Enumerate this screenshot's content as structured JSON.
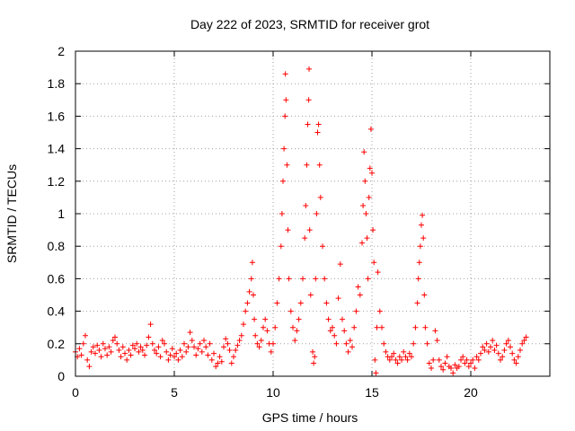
{
  "chart_data": {
    "type": "scatter",
    "title": "Day 222 of 2023, SRMTID for receiver grot",
    "xlabel": "GPS time / hours",
    "ylabel": "SRMTID / TECUs",
    "xlim": [
      0,
      24
    ],
    "ylim": [
      0,
      2
    ],
    "xticks": [
      0,
      5,
      10,
      15,
      20
    ],
    "yticks": [
      0,
      0.2,
      0.4,
      0.6,
      0.8,
      1,
      1.2,
      1.4,
      1.6,
      1.8,
      2
    ],
    "xtick_labels": [
      "0",
      "5",
      "10",
      "15",
      "20"
    ],
    "ytick_labels": [
      "0",
      "0.2",
      "0.4",
      "0.6",
      "0.8",
      "1",
      "1.2",
      "1.4",
      "1.6",
      "1.8",
      "2"
    ],
    "grid": true,
    "marker": "+",
    "color": "#ff0000",
    "series": [
      {
        "name": "SRMTID",
        "points": [
          [
            0.0,
            0.15
          ],
          [
            0.1,
            0.12
          ],
          [
            0.2,
            0.17
          ],
          [
            0.3,
            0.13
          ],
          [
            0.4,
            0.2
          ],
          [
            0.5,
            0.25
          ],
          [
            0.6,
            0.1
          ],
          [
            0.7,
            0.06
          ],
          [
            0.8,
            0.15
          ],
          [
            0.9,
            0.18
          ],
          [
            1.0,
            0.14
          ],
          [
            1.1,
            0.19
          ],
          [
            1.2,
            0.16
          ],
          [
            1.3,
            0.12
          ],
          [
            1.4,
            0.2
          ],
          [
            1.5,
            0.17
          ],
          [
            1.6,
            0.13
          ],
          [
            1.7,
            0.18
          ],
          [
            1.8,
            0.15
          ],
          [
            1.9,
            0.22
          ],
          [
            2.0,
            0.24
          ],
          [
            2.1,
            0.2
          ],
          [
            2.2,
            0.16
          ],
          [
            2.3,
            0.12
          ],
          [
            2.4,
            0.18
          ],
          [
            2.5,
            0.14
          ],
          [
            2.6,
            0.1
          ],
          [
            2.7,
            0.16
          ],
          [
            2.8,
            0.13
          ],
          [
            2.9,
            0.19
          ],
          [
            3.0,
            0.17
          ],
          [
            3.1,
            0.2
          ],
          [
            3.2,
            0.15
          ],
          [
            3.3,
            0.18
          ],
          [
            3.4,
            0.16
          ],
          [
            3.5,
            0.13
          ],
          [
            3.6,
            0.19
          ],
          [
            3.7,
            0.24
          ],
          [
            3.8,
            0.32
          ],
          [
            3.9,
            0.2
          ],
          [
            4.0,
            0.16
          ],
          [
            4.1,
            0.14
          ],
          [
            4.2,
            0.18
          ],
          [
            4.3,
            0.12
          ],
          [
            4.4,
            0.22
          ],
          [
            4.5,
            0.2
          ],
          [
            4.6,
            0.15
          ],
          [
            4.7,
            0.1
          ],
          [
            4.8,
            0.13
          ],
          [
            4.9,
            0.17
          ],
          [
            5.0,
            0.12
          ],
          [
            5.1,
            0.14
          ],
          [
            5.2,
            0.1
          ],
          [
            5.3,
            0.16
          ],
          [
            5.4,
            0.12
          ],
          [
            5.5,
            0.2
          ],
          [
            5.6,
            0.15
          ],
          [
            5.7,
            0.18
          ],
          [
            5.8,
            0.27
          ],
          [
            5.9,
            0.22
          ],
          [
            6.0,
            0.18
          ],
          [
            6.1,
            0.13
          ],
          [
            6.2,
            0.17
          ],
          [
            6.3,
            0.2
          ],
          [
            6.4,
            0.15
          ],
          [
            6.5,
            0.22
          ],
          [
            6.6,
            0.18
          ],
          [
            6.7,
            0.13
          ],
          [
            6.8,
            0.2
          ],
          [
            6.9,
            0.1
          ],
          [
            7.0,
            0.14
          ],
          [
            7.1,
            0.06
          ],
          [
            7.2,
            0.08
          ],
          [
            7.3,
            0.12
          ],
          [
            7.4,
            0.09
          ],
          [
            7.5,
            0.18
          ],
          [
            7.6,
            0.23
          ],
          [
            7.7,
            0.2
          ],
          [
            7.8,
            0.16
          ],
          [
            7.9,
            0.08
          ],
          [
            8.0,
            0.12
          ],
          [
            8.1,
            0.16
          ],
          [
            8.2,
            0.19
          ],
          [
            8.3,
            0.22
          ],
          [
            8.4,
            0.25
          ],
          [
            8.5,
            0.32
          ],
          [
            8.6,
            0.4
          ],
          [
            8.7,
            0.45
          ],
          [
            8.8,
            0.52
          ],
          [
            8.9,
            0.6
          ],
          [
            8.95,
            0.7
          ],
          [
            9.0,
            0.5
          ],
          [
            9.05,
            0.35
          ],
          [
            9.1,
            0.25
          ],
          [
            9.2,
            0.2
          ],
          [
            9.3,
            0.18
          ],
          [
            9.4,
            0.22
          ],
          [
            9.5,
            0.3
          ],
          [
            9.6,
            0.35
          ],
          [
            9.7,
            0.28
          ],
          [
            9.8,
            0.2
          ],
          [
            9.9,
            0.15
          ],
          [
            10.0,
            0.2
          ],
          [
            10.1,
            0.3
          ],
          [
            10.2,
            0.45
          ],
          [
            10.3,
            0.6
          ],
          [
            10.4,
            0.8
          ],
          [
            10.45,
            1.0
          ],
          [
            10.5,
            1.2
          ],
          [
            10.55,
            1.4
          ],
          [
            10.6,
            1.6
          ],
          [
            10.62,
            1.86
          ],
          [
            10.65,
            1.7
          ],
          [
            10.7,
            1.3
          ],
          [
            10.75,
            0.9
          ],
          [
            10.8,
            0.6
          ],
          [
            10.9,
            0.4
          ],
          [
            11.0,
            0.3
          ],
          [
            11.1,
            0.22
          ],
          [
            11.2,
            0.28
          ],
          [
            11.3,
            0.35
          ],
          [
            11.4,
            0.45
          ],
          [
            11.5,
            0.6
          ],
          [
            11.6,
            0.85
          ],
          [
            11.65,
            1.05
          ],
          [
            11.7,
            1.3
          ],
          [
            11.75,
            1.55
          ],
          [
            11.8,
            1.7
          ],
          [
            11.82,
            1.89
          ],
          [
            11.85,
            0.9
          ],
          [
            11.9,
            0.5
          ],
          [
            12.0,
            0.15
          ],
          [
            12.05,
            0.08
          ],
          [
            12.1,
            0.12
          ],
          [
            12.15,
            0.6
          ],
          [
            12.2,
            1.0
          ],
          [
            12.25,
            1.5
          ],
          [
            12.3,
            1.55
          ],
          [
            12.35,
            1.3
          ],
          [
            12.4,
            1.1
          ],
          [
            12.5,
            0.8
          ],
          [
            12.6,
            0.6
          ],
          [
            12.7,
            0.45
          ],
          [
            12.8,
            0.35
          ],
          [
            12.9,
            0.28
          ],
          [
            13.0,
            0.3
          ],
          [
            13.1,
            0.25
          ],
          [
            13.2,
            0.2
          ],
          [
            13.3,
            0.48
          ],
          [
            13.4,
            0.69
          ],
          [
            13.5,
            0.35
          ],
          [
            13.6,
            0.28
          ],
          [
            13.7,
            0.2
          ],
          [
            13.8,
            0.15
          ],
          [
            13.9,
            0.22
          ],
          [
            14.0,
            0.18
          ],
          [
            14.1,
            0.3
          ],
          [
            14.2,
            0.4
          ],
          [
            14.3,
            0.55
          ],
          [
            14.4,
            0.5
          ],
          [
            14.5,
            0.82
          ],
          [
            14.55,
            1.05
          ],
          [
            14.6,
            1.38
          ],
          [
            14.65,
            1.2
          ],
          [
            14.7,
            1.0
          ],
          [
            14.75,
            0.85
          ],
          [
            14.8,
            0.6
          ],
          [
            14.85,
            1.1
          ],
          [
            14.9,
            1.28
          ],
          [
            14.95,
            1.52
          ],
          [
            15.0,
            1.25
          ],
          [
            15.05,
            0.9
          ],
          [
            15.1,
            0.7
          ],
          [
            15.15,
            0.1
          ],
          [
            15.2,
            0.02
          ],
          [
            15.25,
            0.3
          ],
          [
            15.3,
            0.64
          ],
          [
            15.4,
            0.4
          ],
          [
            15.5,
            0.3
          ],
          [
            15.6,
            0.2
          ],
          [
            15.7,
            0.15
          ],
          [
            15.8,
            0.12
          ],
          [
            15.9,
            0.1
          ],
          [
            16.0,
            0.12
          ],
          [
            16.1,
            0.14
          ],
          [
            16.2,
            0.1
          ],
          [
            16.3,
            0.08
          ],
          [
            16.4,
            0.12
          ],
          [
            16.5,
            0.1
          ],
          [
            16.6,
            0.15
          ],
          [
            16.7,
            0.12
          ],
          [
            16.8,
            0.1
          ],
          [
            16.9,
            0.14
          ],
          [
            17.0,
            0.12
          ],
          [
            17.1,
            0.2
          ],
          [
            17.2,
            0.3
          ],
          [
            17.3,
            0.45
          ],
          [
            17.35,
            0.6
          ],
          [
            17.4,
            0.7
          ],
          [
            17.45,
            0.8
          ],
          [
            17.5,
            0.93
          ],
          [
            17.55,
            0.99
          ],
          [
            17.6,
            0.85
          ],
          [
            17.65,
            0.5
          ],
          [
            17.7,
            0.3
          ],
          [
            17.8,
            0.2
          ],
          [
            17.9,
            0.08
          ],
          [
            18.0,
            0.05
          ],
          [
            18.1,
            0.1
          ],
          [
            18.2,
            0.28
          ],
          [
            18.3,
            0.22
          ],
          [
            18.4,
            0.1
          ],
          [
            18.5,
            0.06
          ],
          [
            18.6,
            0.04
          ],
          [
            18.7,
            0.08
          ],
          [
            18.8,
            0.12
          ],
          [
            18.9,
            0.06
          ],
          [
            19.0,
            0.05
          ],
          [
            19.1,
            0.02
          ],
          [
            19.2,
            0.07
          ],
          [
            19.3,
            0.05
          ],
          [
            19.4,
            0.06
          ],
          [
            19.5,
            0.1
          ],
          [
            19.6,
            0.12
          ],
          [
            19.7,
            0.08
          ],
          [
            19.8,
            0.1
          ],
          [
            19.9,
            0.06
          ],
          [
            20.0,
            0.08
          ],
          [
            20.1,
            0.1
          ],
          [
            20.2,
            0.05
          ],
          [
            20.3,
            0.12
          ],
          [
            20.4,
            0.1
          ],
          [
            20.5,
            0.14
          ],
          [
            20.6,
            0.18
          ],
          [
            20.7,
            0.16
          ],
          [
            20.8,
            0.2
          ],
          [
            20.9,
            0.15
          ],
          [
            21.0,
            0.18
          ],
          [
            21.1,
            0.22
          ],
          [
            21.2,
            0.16
          ],
          [
            21.3,
            0.19
          ],
          [
            21.4,
            0.14
          ],
          [
            21.5,
            0.1
          ],
          [
            21.6,
            0.12
          ],
          [
            21.7,
            0.16
          ],
          [
            21.8,
            0.2
          ],
          [
            21.9,
            0.22
          ],
          [
            22.0,
            0.18
          ],
          [
            22.1,
            0.14
          ],
          [
            22.2,
            0.1
          ],
          [
            22.3,
            0.08
          ],
          [
            22.4,
            0.12
          ],
          [
            22.5,
            0.16
          ],
          [
            22.6,
            0.2
          ],
          [
            22.7,
            0.22
          ],
          [
            22.8,
            0.24
          ]
        ]
      }
    ]
  }
}
